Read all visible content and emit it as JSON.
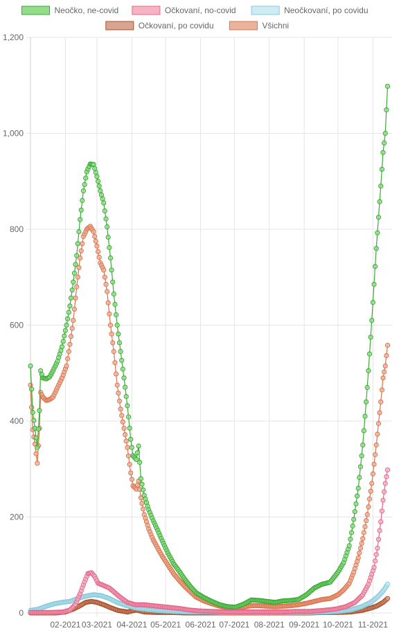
{
  "chart_data": {
    "type": "line",
    "title": "",
    "xlabel": "",
    "ylabel": "",
    "ylim": [
      0,
      1200
    ],
    "yticks": [
      "0",
      "200",
      "400",
      "600",
      "800",
      "1,000",
      "1,200"
    ],
    "ytick_values": [
      0,
      200,
      400,
      600,
      800,
      1000,
      1200
    ],
    "xlim": [
      "2021-01-01",
      "2021-11-18"
    ],
    "xtick_labels": [
      "02-2021",
      "03-2021",
      "04-2021",
      "05-2021",
      "06-2021",
      "07-2021",
      "08-2021",
      "09-2021",
      "10-2021",
      "11-2021"
    ],
    "xtick_dates": [
      "2021-02-01",
      "2021-03-01",
      "2021-04-01",
      "2021-05-01",
      "2021-06-01",
      "2021-07-01",
      "2021-08-01",
      "2021-09-01",
      "2021-10-01",
      "2021-11-01"
    ],
    "grid": true,
    "legend_position": "top",
    "series": [
      {
        "name": "Neočko, ne-covid",
        "line_color": "#3aaa35",
        "fill_color": "#93dc8a",
        "points": [
          [
            "2021-01-01",
            515
          ],
          [
            "2021-01-03",
            418
          ],
          [
            "2021-01-05",
            385
          ],
          [
            "2021-01-07",
            345
          ],
          [
            "2021-01-09",
            422
          ],
          [
            "2021-01-10",
            505
          ],
          [
            "2021-01-12",
            490
          ],
          [
            "2021-01-15",
            488
          ],
          [
            "2021-01-18",
            492
          ],
          [
            "2021-01-21",
            505
          ],
          [
            "2021-01-25",
            525
          ],
          [
            "2021-01-29",
            555
          ],
          [
            "2021-02-02",
            600
          ],
          [
            "2021-02-05",
            640
          ],
          [
            "2021-02-08",
            690
          ],
          [
            "2021-02-11",
            745
          ],
          [
            "2021-02-14",
            820
          ],
          [
            "2021-02-17",
            880
          ],
          [
            "2021-02-20",
            920
          ],
          [
            "2021-02-23",
            936
          ],
          [
            "2021-02-26",
            935
          ],
          [
            "2021-03-01",
            910
          ],
          [
            "2021-03-04",
            880
          ],
          [
            "2021-03-07",
            855
          ],
          [
            "2021-03-10",
            805
          ],
          [
            "2021-03-13",
            740
          ],
          [
            "2021-03-16",
            665
          ],
          [
            "2021-03-19",
            600
          ],
          [
            "2021-03-22",
            545
          ],
          [
            "2021-03-25",
            490
          ],
          [
            "2021-03-28",
            432
          ],
          [
            "2021-03-31",
            362
          ],
          [
            "2021-04-02",
            328
          ],
          [
            "2021-04-05",
            320
          ],
          [
            "2021-04-07",
            348
          ],
          [
            "2021-04-09",
            280
          ],
          [
            "2021-04-12",
            245
          ],
          [
            "2021-04-16",
            215
          ],
          [
            "2021-04-20",
            192
          ],
          [
            "2021-04-24",
            172
          ],
          [
            "2021-04-28",
            150
          ],
          [
            "2021-05-03",
            125
          ],
          [
            "2021-05-08",
            103
          ],
          [
            "2021-05-13",
            87
          ],
          [
            "2021-05-18",
            70
          ],
          [
            "2021-05-23",
            55
          ],
          [
            "2021-05-28",
            42
          ],
          [
            "2021-06-04",
            32
          ],
          [
            "2021-06-11",
            24
          ],
          [
            "2021-06-18",
            17
          ],
          [
            "2021-06-25",
            13
          ],
          [
            "2021-07-02",
            12
          ],
          [
            "2021-07-09",
            18
          ],
          [
            "2021-07-16",
            27
          ],
          [
            "2021-07-23",
            26
          ],
          [
            "2021-07-30",
            24
          ],
          [
            "2021-08-06",
            22
          ],
          [
            "2021-08-13",
            25
          ],
          [
            "2021-08-20",
            26
          ],
          [
            "2021-08-27",
            28
          ],
          [
            "2021-09-03",
            38
          ],
          [
            "2021-09-10",
            52
          ],
          [
            "2021-09-17",
            60
          ],
          [
            "2021-09-24",
            64
          ],
          [
            "2021-10-01",
            85
          ],
          [
            "2021-10-06",
            105
          ],
          [
            "2021-10-11",
            140
          ],
          [
            "2021-10-15",
            195
          ],
          [
            "2021-10-19",
            260
          ],
          [
            "2021-10-23",
            350
          ],
          [
            "2021-10-27",
            470
          ],
          [
            "2021-10-31",
            610
          ],
          [
            "2021-11-04",
            760
          ],
          [
            "2021-11-08",
            890
          ],
          [
            "2021-11-10",
            960
          ],
          [
            "2021-11-12",
            1000
          ],
          [
            "2021-11-14",
            1098
          ]
        ]
      },
      {
        "name": "Očkovaní, no-covid",
        "line_color": "#e4678b",
        "fill_color": "#f6b3c3",
        "points": [
          [
            "2021-01-01",
            1
          ],
          [
            "2021-01-10",
            1
          ],
          [
            "2021-01-20",
            1
          ],
          [
            "2021-01-30",
            2
          ],
          [
            "2021-02-05",
            6
          ],
          [
            "2021-02-10",
            18
          ],
          [
            "2021-02-14",
            40
          ],
          [
            "2021-02-18",
            65
          ],
          [
            "2021-02-21",
            82
          ],
          [
            "2021-02-24",
            84
          ],
          [
            "2021-02-27",
            76
          ],
          [
            "2021-03-02",
            62
          ],
          [
            "2021-03-07",
            57
          ],
          [
            "2021-03-12",
            52
          ],
          [
            "2021-03-17",
            42
          ],
          [
            "2021-03-22",
            32
          ],
          [
            "2021-03-28",
            22
          ],
          [
            "2021-04-04",
            17
          ],
          [
            "2021-04-12",
            17
          ],
          [
            "2021-04-20",
            15
          ],
          [
            "2021-04-28",
            13
          ],
          [
            "2021-05-06",
            11
          ],
          [
            "2021-05-14",
            9
          ],
          [
            "2021-05-22",
            6
          ],
          [
            "2021-06-01",
            4
          ],
          [
            "2021-06-12",
            3
          ],
          [
            "2021-06-24",
            2
          ],
          [
            "2021-07-06",
            2
          ],
          [
            "2021-07-18",
            2
          ],
          [
            "2021-07-30",
            2
          ],
          [
            "2021-08-12",
            2
          ],
          [
            "2021-08-24",
            3
          ],
          [
            "2021-09-05",
            3
          ],
          [
            "2021-09-17",
            5
          ],
          [
            "2021-09-29",
            8
          ],
          [
            "2021-10-08",
            13
          ],
          [
            "2021-10-16",
            22
          ],
          [
            "2021-10-23",
            38
          ],
          [
            "2021-10-28",
            60
          ],
          [
            "2021-11-02",
            95
          ],
          [
            "2021-11-05",
            135
          ],
          [
            "2021-11-08",
            190
          ],
          [
            "2021-11-10",
            235
          ],
          [
            "2021-11-12",
            270
          ],
          [
            "2021-11-14",
            298
          ]
        ]
      },
      {
        "name": "Neočkovaní, po covidu",
        "line_color": "#86c9dc",
        "fill_color": "#cfebf3",
        "points": [
          [
            "2021-01-01",
            5
          ],
          [
            "2021-01-08",
            8
          ],
          [
            "2021-01-15",
            14
          ],
          [
            "2021-01-22",
            19
          ],
          [
            "2021-01-29",
            22
          ],
          [
            "2021-02-05",
            24
          ],
          [
            "2021-02-12",
            30
          ],
          [
            "2021-02-19",
            35
          ],
          [
            "2021-02-26",
            38
          ],
          [
            "2021-03-05",
            36
          ],
          [
            "2021-03-12",
            30
          ],
          [
            "2021-03-19",
            22
          ],
          [
            "2021-03-26",
            16
          ],
          [
            "2021-04-05",
            10
          ],
          [
            "2021-04-15",
            7
          ],
          [
            "2021-04-25",
            5
          ],
          [
            "2021-05-08",
            3
          ],
          [
            "2021-05-22",
            2
          ],
          [
            "2021-06-05",
            2
          ],
          [
            "2021-06-20",
            1
          ],
          [
            "2021-07-05",
            1
          ],
          [
            "2021-07-20",
            1
          ],
          [
            "2021-08-05",
            1
          ],
          [
            "2021-08-20",
            1
          ],
          [
            "2021-09-05",
            1
          ],
          [
            "2021-09-20",
            2
          ],
          [
            "2021-10-01",
            3
          ],
          [
            "2021-10-12",
            6
          ],
          [
            "2021-10-22",
            13
          ],
          [
            "2021-10-30",
            22
          ],
          [
            "2021-11-05",
            33
          ],
          [
            "2021-11-09",
            43
          ],
          [
            "2021-11-12",
            52
          ],
          [
            "2021-11-14",
            60
          ]
        ]
      },
      {
        "name": "Očkovaní, po covidu",
        "line_color": "#a9502a",
        "fill_color": "#d9a590",
        "points": [
          [
            "2021-01-01",
            0
          ],
          [
            "2021-01-12",
            0
          ],
          [
            "2021-01-24",
            0
          ],
          [
            "2021-02-01",
            2
          ],
          [
            "2021-02-08",
            8
          ],
          [
            "2021-02-14",
            15
          ],
          [
            "2021-02-19",
            22
          ],
          [
            "2021-02-24",
            24
          ],
          [
            "2021-03-01",
            22
          ],
          [
            "2021-03-07",
            17
          ],
          [
            "2021-03-13",
            11
          ],
          [
            "2021-03-20",
            5
          ],
          [
            "2021-03-28",
            2
          ],
          [
            "2021-04-05",
            6
          ],
          [
            "2021-04-12",
            2
          ],
          [
            "2021-04-22",
            1
          ],
          [
            "2021-05-05",
            1
          ],
          [
            "2021-05-20",
            0
          ],
          [
            "2021-06-05",
            0
          ],
          [
            "2021-06-20",
            0
          ],
          [
            "2021-07-05",
            0
          ],
          [
            "2021-07-20",
            0
          ],
          [
            "2021-08-05",
            0
          ],
          [
            "2021-08-20",
            0
          ],
          [
            "2021-09-05",
            0
          ],
          [
            "2021-09-20",
            1
          ],
          [
            "2021-10-01",
            1
          ],
          [
            "2021-10-12",
            2
          ],
          [
            "2021-10-22",
            5
          ],
          [
            "2021-10-30",
            10
          ],
          [
            "2021-11-05",
            15
          ],
          [
            "2021-11-10",
            22
          ],
          [
            "2021-11-14",
            30
          ]
        ]
      },
      {
        "name": "Všichni",
        "line_color": "#d9734b",
        "fill_color": "#ecb39c",
        "points": [
          [
            "2021-01-01",
            475
          ],
          [
            "2021-01-03",
            382
          ],
          [
            "2021-01-05",
            352
          ],
          [
            "2021-01-07",
            312
          ],
          [
            "2021-01-09",
            385
          ],
          [
            "2021-01-10",
            460
          ],
          [
            "2021-01-12",
            450
          ],
          [
            "2021-01-15",
            443
          ],
          [
            "2021-01-18",
            445
          ],
          [
            "2021-01-21",
            450
          ],
          [
            "2021-01-25",
            470
          ],
          [
            "2021-01-29",
            490
          ],
          [
            "2021-02-02",
            515
          ],
          [
            "2021-02-05",
            560
          ],
          [
            "2021-02-08",
            610
          ],
          [
            "2021-02-11",
            680
          ],
          [
            "2021-02-14",
            740
          ],
          [
            "2021-02-17",
            785
          ],
          [
            "2021-02-20",
            800
          ],
          [
            "2021-02-23",
            806
          ],
          [
            "2021-02-26",
            795
          ],
          [
            "2021-03-01",
            765
          ],
          [
            "2021-03-04",
            730
          ],
          [
            "2021-03-07",
            715
          ],
          [
            "2021-03-10",
            670
          ],
          [
            "2021-03-13",
            600
          ],
          [
            "2021-03-16",
            545
          ],
          [
            "2021-03-19",
            475
          ],
          [
            "2021-03-22",
            425
          ],
          [
            "2021-03-25",
            385
          ],
          [
            "2021-03-28",
            345
          ],
          [
            "2021-03-31",
            292
          ],
          [
            "2021-04-02",
            265
          ],
          [
            "2021-04-05",
            258
          ],
          [
            "2021-04-07",
            275
          ],
          [
            "2021-04-09",
            240
          ],
          [
            "2021-04-12",
            205
          ],
          [
            "2021-04-16",
            175
          ],
          [
            "2021-04-20",
            152
          ],
          [
            "2021-04-24",
            135
          ],
          [
            "2021-04-28",
            118
          ],
          [
            "2021-05-03",
            100
          ],
          [
            "2021-05-08",
            82
          ],
          [
            "2021-05-13",
            68
          ],
          [
            "2021-05-18",
            55
          ],
          [
            "2021-05-23",
            44
          ],
          [
            "2021-05-28",
            33
          ],
          [
            "2021-06-04",
            25
          ],
          [
            "2021-06-11",
            19
          ],
          [
            "2021-06-18",
            14
          ],
          [
            "2021-06-25",
            11
          ],
          [
            "2021-07-02",
            10
          ],
          [
            "2021-07-09",
            12
          ],
          [
            "2021-07-16",
            15
          ],
          [
            "2021-07-23",
            15
          ],
          [
            "2021-07-30",
            14
          ],
          [
            "2021-08-06",
            13
          ],
          [
            "2021-08-13",
            14
          ],
          [
            "2021-08-20",
            15
          ],
          [
            "2021-08-27",
            17
          ],
          [
            "2021-09-03",
            20
          ],
          [
            "2021-09-10",
            24
          ],
          [
            "2021-09-17",
            28
          ],
          [
            "2021-09-24",
            30
          ],
          [
            "2021-10-01",
            38
          ],
          [
            "2021-10-06",
            48
          ],
          [
            "2021-10-11",
            62
          ],
          [
            "2021-10-15",
            85
          ],
          [
            "2021-10-19",
            115
          ],
          [
            "2021-10-23",
            155
          ],
          [
            "2021-10-27",
            205
          ],
          [
            "2021-10-31",
            270
          ],
          [
            "2021-11-04",
            350
          ],
          [
            "2021-11-08",
            440
          ],
          [
            "2021-11-10",
            490
          ],
          [
            "2021-11-12",
            515
          ],
          [
            "2021-11-14",
            558
          ]
        ]
      }
    ]
  }
}
